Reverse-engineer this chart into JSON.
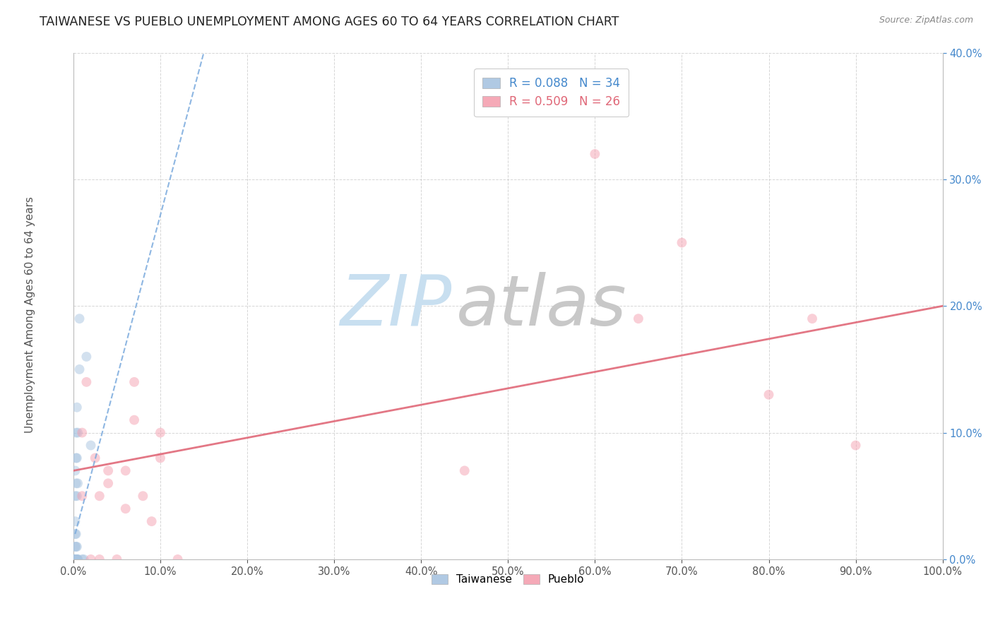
{
  "title": "TAIWANESE VS PUEBLO UNEMPLOYMENT AMONG AGES 60 TO 64 YEARS CORRELATION CHART",
  "source": "Source: ZipAtlas.com",
  "ylabel": "Unemployment Among Ages 60 to 64 years",
  "xlim": [
    0,
    1.0
  ],
  "ylim": [
    0,
    0.4
  ],
  "xticks": [
    0.0,
    0.1,
    0.2,
    0.3,
    0.4,
    0.5,
    0.6,
    0.7,
    0.8,
    0.9,
    1.0
  ],
  "xticklabels": [
    "0.0%",
    "10.0%",
    "20.0%",
    "30.0%",
    "40.0%",
    "50.0%",
    "60.0%",
    "70.0%",
    "80.0%",
    "90.0%",
    "100.0%"
  ],
  "yticks": [
    0.0,
    0.1,
    0.2,
    0.3,
    0.4
  ],
  "yticklabels": [
    "0.0%",
    "10.0%",
    "20.0%",
    "30.0%",
    "40.0%"
  ],
  "taiwanese_color": "#a8c4e0",
  "pueblo_color": "#f4a0b0",
  "taiwanese_trendline_color": "#7aaadd",
  "pueblo_trendline_color": "#e06878",
  "watermark_zip_color": "#c8dff0",
  "watermark_atlas_color": "#c8c8c8",
  "legend_taiwanese_color": "#4488cc",
  "legend_pueblo_color": "#e06878",
  "background_color": "#ffffff",
  "grid_color": "#cccccc",
  "title_fontsize": 12.5,
  "axis_label_fontsize": 11,
  "tick_fontsize": 10.5,
  "marker_size": 100,
  "marker_alpha": 0.5,
  "taiwanese_x": [
    0.002,
    0.002,
    0.002,
    0.002,
    0.002,
    0.002,
    0.002,
    0.002,
    0.002,
    0.002,
    0.003,
    0.003,
    0.003,
    0.003,
    0.003,
    0.003,
    0.003,
    0.003,
    0.004,
    0.004,
    0.004,
    0.004,
    0.004,
    0.004,
    0.005,
    0.005,
    0.005,
    0.005,
    0.007,
    0.007,
    0.01,
    0.012,
    0.015,
    0.02
  ],
  "taiwanese_y": [
    0.0,
    0.0,
    0.0,
    0.0,
    0.0,
    0.01,
    0.02,
    0.03,
    0.05,
    0.07,
    0.0,
    0.0,
    0.0,
    0.01,
    0.02,
    0.06,
    0.08,
    0.1,
    0.0,
    0.0,
    0.01,
    0.05,
    0.08,
    0.12,
    0.0,
    0.0,
    0.06,
    0.1,
    0.15,
    0.19,
    0.0,
    0.0,
    0.16,
    0.09
  ],
  "pueblo_x": [
    0.01,
    0.01,
    0.015,
    0.02,
    0.025,
    0.03,
    0.03,
    0.04,
    0.04,
    0.05,
    0.06,
    0.06,
    0.07,
    0.07,
    0.08,
    0.09,
    0.1,
    0.1,
    0.12,
    0.45,
    0.6,
    0.65,
    0.7,
    0.8,
    0.85,
    0.9
  ],
  "pueblo_y": [
    0.05,
    0.1,
    0.14,
    0.0,
    0.08,
    0.0,
    0.05,
    0.06,
    0.07,
    0.0,
    0.04,
    0.07,
    0.14,
    0.11,
    0.05,
    0.03,
    0.08,
    0.1,
    0.0,
    0.07,
    0.32,
    0.19,
    0.25,
    0.13,
    0.19,
    0.09
  ],
  "pueblo_trendline_x0": 0.0,
  "pueblo_trendline_y0": 0.07,
  "pueblo_trendline_x1": 1.0,
  "pueblo_trendline_y1": 0.2,
  "taiwanese_trendline_x0": 0.002,
  "taiwanese_trendline_y0": 0.02,
  "taiwanese_trendline_x1": 0.15,
  "taiwanese_trendline_y1": 0.4
}
